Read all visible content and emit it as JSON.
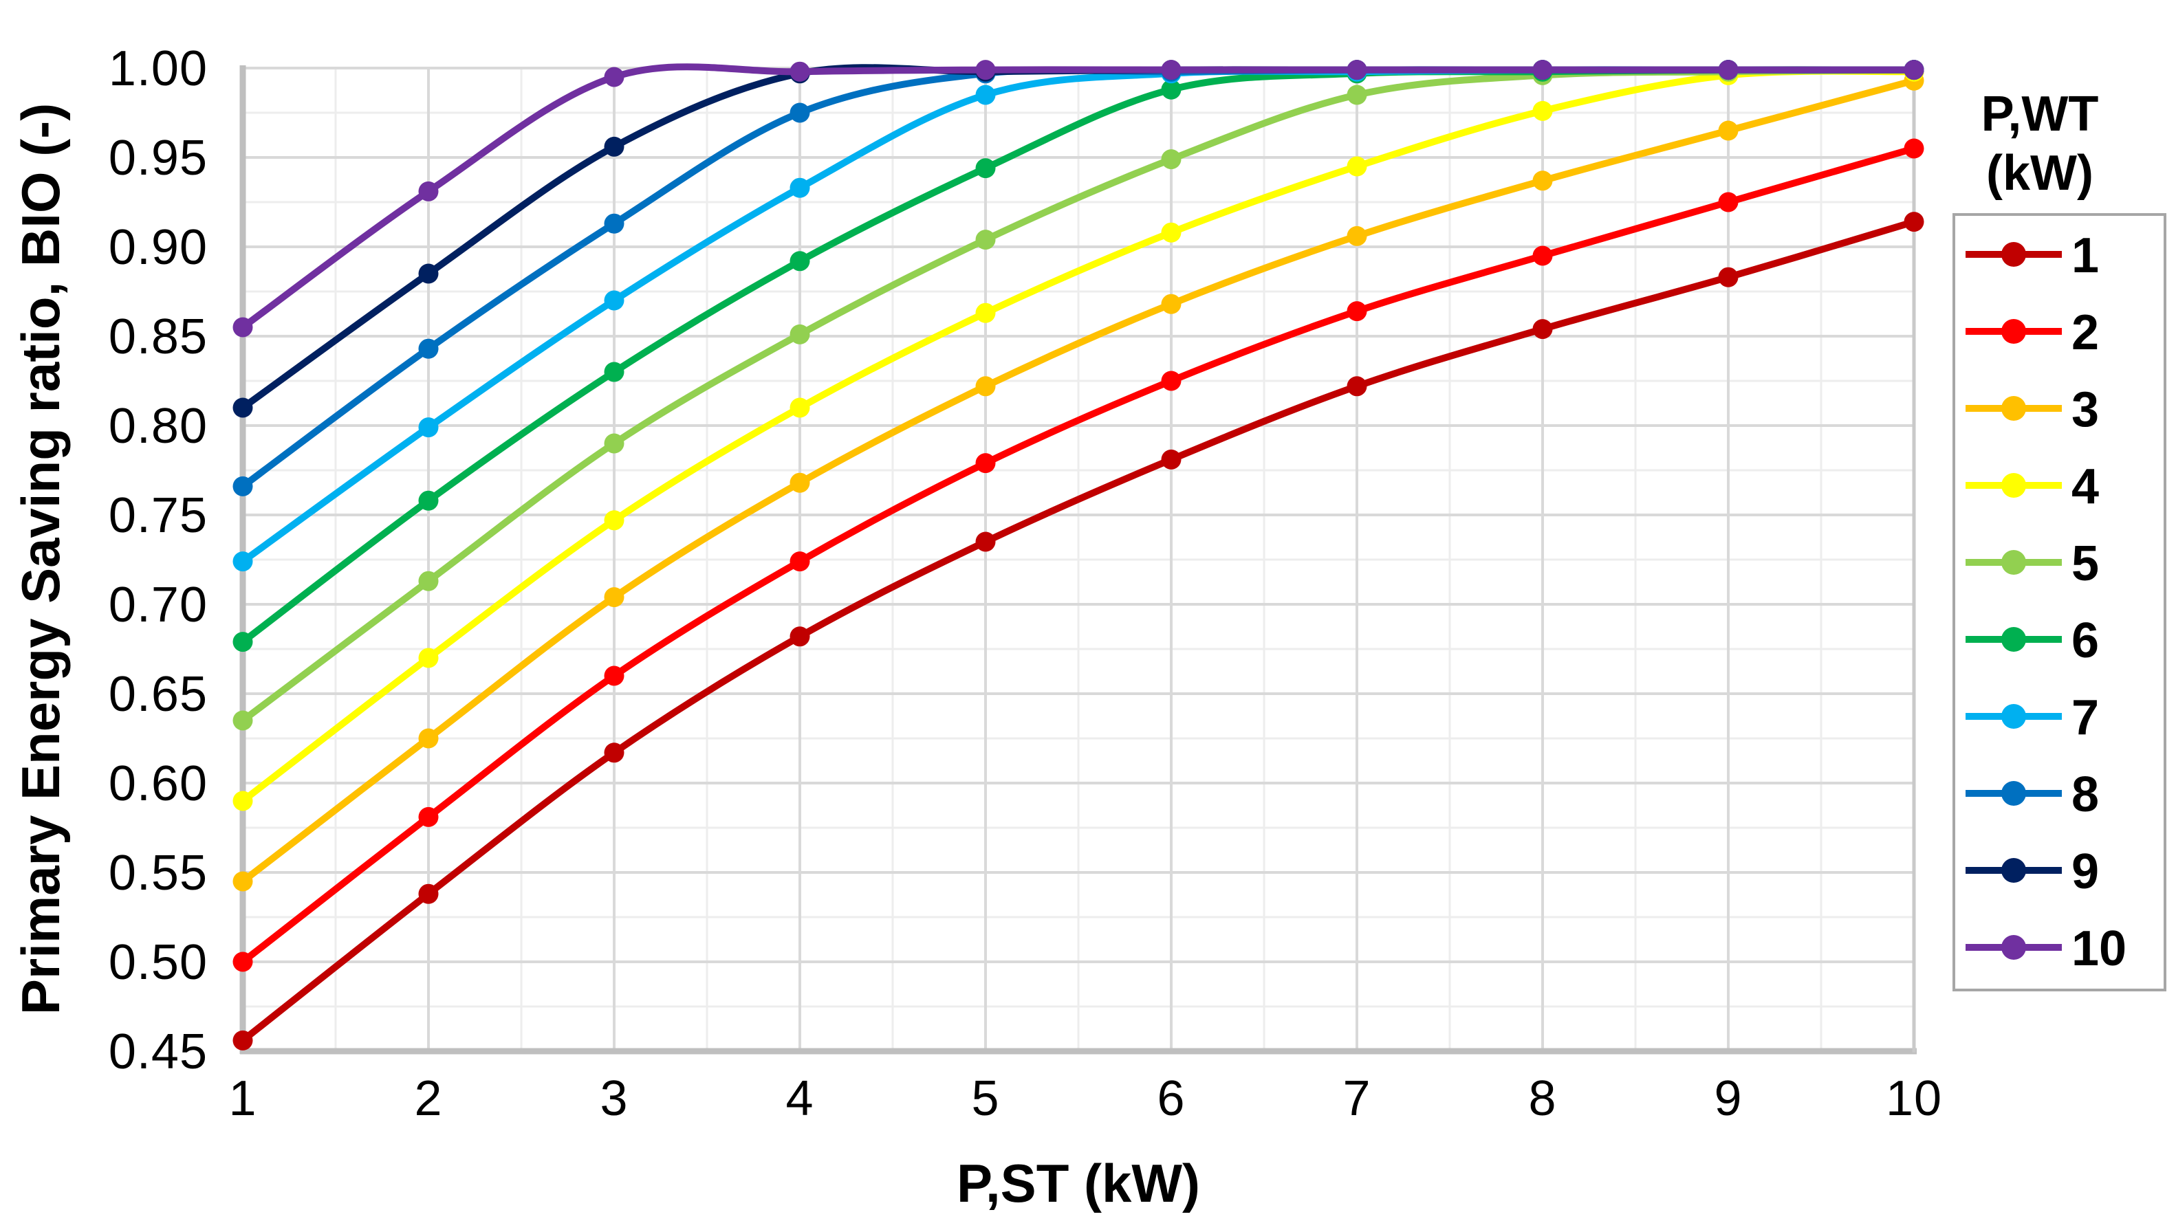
{
  "chart_data": {
    "type": "line",
    "title": "",
    "xlabel": "P,ST (kW)",
    "ylabel": "Primary Energy Saving ratio, BIO (-)",
    "xlim": [
      1,
      10
    ],
    "ylim": [
      0.45,
      1.0
    ],
    "y_major_step": 0.05,
    "y_minor_step": 0.025,
    "x_major_step": 1,
    "x_minor_step": 0.5,
    "grid": "on",
    "legend_position": "right",
    "legend_title_line1": "P,WT",
    "legend_title_line2": "(kW)",
    "x": [
      1,
      2,
      3,
      4,
      5,
      6,
      7,
      8,
      9,
      10
    ],
    "x_ticks": [
      "1",
      "2",
      "3",
      "4",
      "5",
      "6",
      "7",
      "8",
      "9",
      "10"
    ],
    "y_ticks": [
      "1.00",
      "0.95",
      "0.90",
      "0.85",
      "0.80",
      "0.75",
      "0.70",
      "0.65",
      "0.60",
      "0.55",
      "0.50",
      "0.45"
    ],
    "series": [
      {
        "name": "1",
        "color": "#C00000",
        "values": [
          0.456,
          0.538,
          0.617,
          0.682,
          0.735,
          0.781,
          0.822,
          0.854,
          0.883,
          0.914
        ]
      },
      {
        "name": "2",
        "color": "#FF0000",
        "values": [
          0.5,
          0.581,
          0.66,
          0.724,
          0.779,
          0.825,
          0.864,
          0.895,
          0.925,
          0.955
        ]
      },
      {
        "name": "3",
        "color": "#FFC000",
        "values": [
          0.545,
          0.625,
          0.704,
          0.768,
          0.822,
          0.868,
          0.906,
          0.937,
          0.965,
          0.993
        ]
      },
      {
        "name": "4",
        "color": "#FFFF00",
        "values": [
          0.59,
          0.67,
          0.747,
          0.81,
          0.863,
          0.908,
          0.945,
          0.976,
          0.996,
          0.998
        ]
      },
      {
        "name": "5",
        "color": "#92D050",
        "values": [
          0.635,
          0.713,
          0.79,
          0.851,
          0.904,
          0.949,
          0.985,
          0.996,
          0.998,
          0.999
        ]
      },
      {
        "name": "6",
        "color": "#00B050",
        "values": [
          0.679,
          0.758,
          0.83,
          0.892,
          0.944,
          0.988,
          0.997,
          0.998,
          0.999,
          0.999
        ]
      },
      {
        "name": "7",
        "color": "#00B0F0",
        "values": [
          0.724,
          0.799,
          0.87,
          0.933,
          0.985,
          0.997,
          0.998,
          0.999,
          0.999,
          0.999
        ]
      },
      {
        "name": "8",
        "color": "#0070C0",
        "values": [
          0.766,
          0.843,
          0.913,
          0.975,
          0.997,
          0.998,
          0.999,
          0.999,
          0.999,
          0.999
        ]
      },
      {
        "name": "9",
        "color": "#002060",
        "values": [
          0.81,
          0.885,
          0.956,
          0.997,
          0.998,
          0.999,
          0.999,
          0.999,
          0.999,
          0.999
        ]
      },
      {
        "name": "10",
        "color": "#7030A0",
        "values": [
          0.855,
          0.931,
          0.995,
          0.998,
          0.999,
          0.999,
          0.999,
          0.999,
          0.999,
          0.999
        ]
      }
    ]
  },
  "style_colors": {
    "axis_line": "#bfbfbf",
    "major_grid": "#d9d9d9",
    "minor_grid": "#ededed",
    "legend_border": "#a6a6a6",
    "text": "#000000",
    "background": "#ffffff"
  }
}
